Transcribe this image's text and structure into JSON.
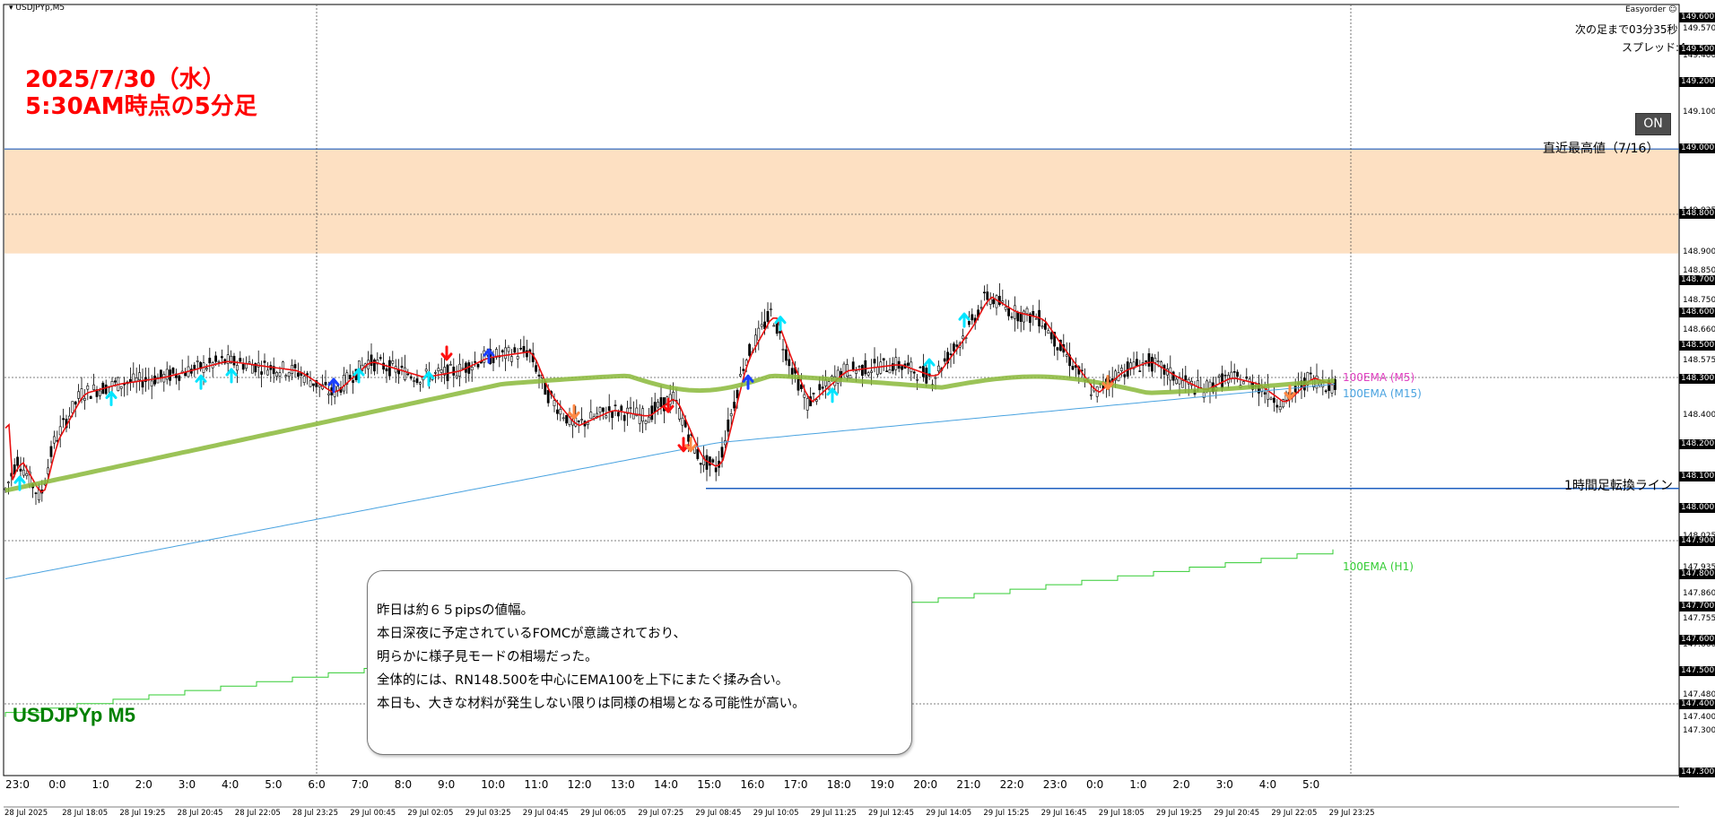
{
  "window": {
    "symbol_timeframe": "USDJPYp,M5"
  },
  "top_right": {
    "plugin_name": "Easyorder",
    "countdown": "次の足まで03分35秒",
    "spread": "スプレッド:4",
    "toggle_label": "ON"
  },
  "overlay_title": {
    "line1": "2025/7/30（水）",
    "line2": "5:30AM時点の5分足"
  },
  "chart_symbol_label": "USDJPYp M5",
  "levels": {
    "recent_high": "直近最高値（7/16）",
    "h1_reversal": "1時間足転換ライン"
  },
  "ema_labels": {
    "m5": "100EMA (M5)",
    "m15": "100EMA (M15)",
    "h1": "100EMA (H1)"
  },
  "note_lines": [
    "昨日は約６５pipsの値幅。",
    "本日深夜に予定されているFOMCが意識されており、",
    "明らかに様子見モードの相場だった。",
    "全体的には、RN148.500を中心にEMA100を上下にまたぐ揉み合い。",
    "本日も、大きな材料が発生しない限りは同様の相場となる可能性が高い。"
  ],
  "price_axis": {
    "labels": [
      "149.570",
      "149.400",
      "149.300",
      "149.100",
      "149.025",
      "148.900",
      "148.850",
      "148.750",
      "148.660",
      "148.575",
      "148.400",
      "148.025",
      "147.935",
      "147.860",
      "147.755",
      "147.660",
      "147.575",
      "147.480",
      "147.400",
      "147.300"
    ],
    "highlighted": [
      "149.600",
      "149.500",
      "149.200",
      "149.000",
      "148.800",
      "148.700",
      "148.600",
      "148.500",
      "148.300",
      "148.200",
      "148.100",
      "148.000",
      "147.900",
      "147.800",
      "147.700",
      "147.600",
      "147.500",
      "147.400",
      "147.300"
    ]
  },
  "time_axis": {
    "hours": [
      "23:0",
      "0:0",
      "1:0",
      "2:0",
      "3:0",
      "4:0",
      "5:0",
      "6:0",
      "7:0",
      "8:0",
      "9:0",
      "10:0",
      "11:0",
      "12:0",
      "13:0",
      "14:0",
      "15:0",
      "16:0",
      "17:0",
      "18:0",
      "19:0",
      "20:0",
      "21:0",
      "22:0",
      "23:0",
      "0:0",
      "1:0",
      "2:0",
      "3:0",
      "4:0",
      "5:0"
    ],
    "dates": [
      "28 Jul 2025",
      "28 Jul 18:05",
      "28 Jul 19:25",
      "28 Jul 20:45",
      "28 Jul 22:05",
      "28 Jul 23:25",
      "29 Jul 00:45",
      "29 Jul 02:05",
      "29 Jul 03:25",
      "29 Jul 04:45",
      "29 Jul 06:05",
      "29 Jul 07:25",
      "29 Jul 08:45",
      "29 Jul 10:05",
      "29 Jul 11:25",
      "29 Jul 12:45",
      "29 Jul 14:05",
      "29 Jul 15:25",
      "29 Jul 16:45",
      "29 Jul 18:05",
      "29 Jul 19:25",
      "29 Jul 20:45",
      "29 Jul 22:05",
      "29 Jul 23:25"
    ]
  },
  "colors": {
    "zone_fill": "#fde0c2",
    "price_line": "#1f5fbf",
    "ema_m5": "#8ab83a",
    "ema_m15": "#4aa3e0",
    "ema_h1": "#33cc33",
    "fast_ma": "#e81010",
    "title_red": "#ff0000",
    "symbol_green": "#008000"
  }
}
